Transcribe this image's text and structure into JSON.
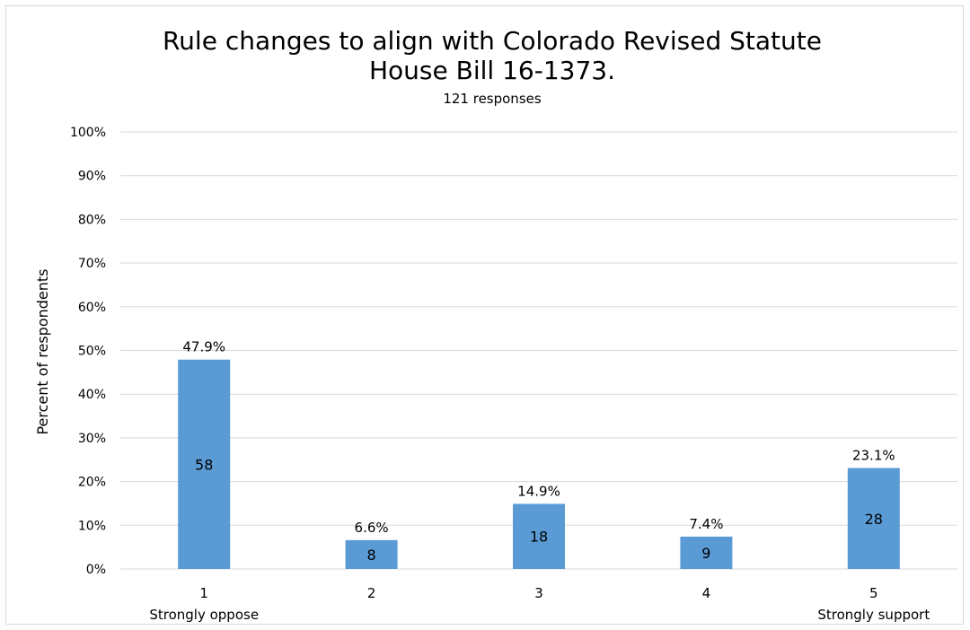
{
  "chart_data": {
    "type": "bar",
    "title_lines": [
      "Rule changes to align with Colorado Revised Statute",
      "House Bill 16-1373."
    ],
    "subtitle": "121 responses",
    "ylabel": "Percent of respondents",
    "xlabel": "",
    "ylim": [
      0,
      100
    ],
    "y_ticks": [
      "0%",
      "10%",
      "20%",
      "30%",
      "40%",
      "50%",
      "60%",
      "70%",
      "80%",
      "90%",
      "100%"
    ],
    "grid": true,
    "categories": [
      "1",
      "2",
      "3",
      "4",
      "5"
    ],
    "category_sublabels": [
      "Strongly oppose",
      "",
      "",
      "",
      "Strongly support"
    ],
    "values": [
      47.9,
      6.6,
      14.9,
      7.4,
      23.1
    ],
    "value_labels": [
      "47.9%",
      "6.6%",
      "14.9%",
      "7.4%",
      "23.1%"
    ],
    "counts": [
      "58",
      "8",
      "18",
      "9",
      "28"
    ],
    "bar_color": "#5b9bd5",
    "grid_color": "#d9d9d9"
  }
}
